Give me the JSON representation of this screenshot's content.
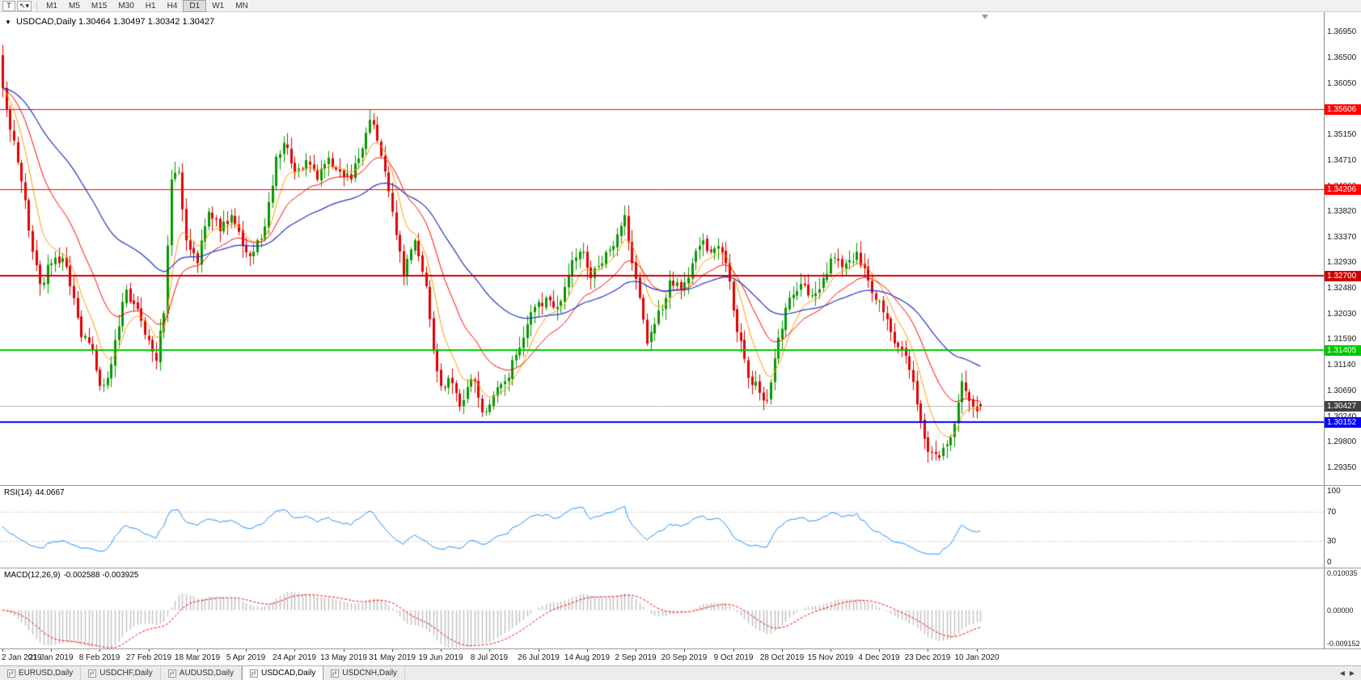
{
  "accent_colors": {
    "bull": "#089800",
    "bear": "#e00000",
    "ma_fast": "#ff9900",
    "ma_mid": "#ff0000",
    "ma_slow": "#2233cc",
    "rsi_line": "#1e90ff",
    "rsi_level": "#c8c8c8",
    "macd_hist": "#bfbfbf",
    "macd_signal": "#ff0000",
    "current_price_line": "#b8b8b8",
    "current_price_badge": "#404040"
  },
  "toolbar": {
    "text_tool": "T",
    "cursor_tool": "↖",
    "cursor_dropdown": "▾",
    "timeframes": [
      "M1",
      "M5",
      "M15",
      "M30",
      "H1",
      "H4",
      "D1",
      "W1",
      "MN"
    ],
    "active_timeframe": "D1"
  },
  "chart": {
    "symbol_title": "USDCAD,Daily",
    "ohlc_values": "1.30464 1.30497 1.30342 1.30427",
    "price_axis_labels": [
      "1.36950",
      "1.36500",
      "1.36050",
      "1.35600",
      "1.35150",
      "1.34710",
      "1.34260",
      "1.33820",
      "1.33370",
      "1.32930",
      "1.32480",
      "1.32030",
      "1.31590",
      "1.31140",
      "1.30690",
      "1.30240",
      "1.29800",
      "1.29350"
    ],
    "levels": [
      {
        "price": 1.35606,
        "label": "1.35606",
        "color": "#ff0000",
        "width": 1
      },
      {
        "price": 1.34206,
        "label": "1.34206",
        "color": "#ff0000",
        "width": 1
      },
      {
        "price": 1.327,
        "label": "1.32700",
        "color": "#cc0000",
        "width": 2
      },
      {
        "price": 1.31405,
        "label": "1.31405",
        "color": "#00c800",
        "width": 2
      },
      {
        "price": 1.30152,
        "label": "1.30152",
        "color": "#0000ff",
        "width": 2
      }
    ],
    "current_price": {
      "value": 1.30427,
      "label": "1.30427"
    }
  },
  "rsi_panel": {
    "name": "RSI(14)",
    "value": "44.0667",
    "axis_labels": [
      {
        "text": "100",
        "value": 100
      },
      {
        "text": "70",
        "value": 70
      },
      {
        "text": "30",
        "value": 30
      },
      {
        "text": "0",
        "value": 0
      }
    ],
    "upper_level": 70,
    "lower_level": 30
  },
  "macd_panel": {
    "name": "MACD(12,26,9)",
    "values": "-0.002588 -0.003925",
    "axis_top": "0.010035",
    "axis_zero": "0.00000",
    "axis_bottom": "-0.009152"
  },
  "date_axis": [
    "2 Jan 2019",
    "21 Jan 2019",
    "8 Feb 2019",
    "27 Feb 2019",
    "18 Mar 2019",
    "5 Apr 2019",
    "24 Apr 2019",
    "13 May 2019",
    "31 May 2019",
    "19 Jun 2019",
    "8 Jul 2019",
    "26 Jul 2019",
    "14 Aug 2019",
    "2 Sep 2019",
    "20 Sep 2019",
    "9 Oct 2019",
    "28 Oct 2019",
    "15 Nov 2019",
    "4 Dec 2019",
    "23 Dec 2019",
    "10 Jan 2020"
  ],
  "tab_bar": {
    "tabs": [
      {
        "label": "EURUSD,Daily",
        "active": false
      },
      {
        "label": "USDCHF,Daily",
        "active": false
      },
      {
        "label": "AUDUSD,Daily",
        "active": false
      },
      {
        "label": "USDCAD,Daily",
        "active": true
      },
      {
        "label": "USDCNH,Daily",
        "active": false
      }
    ],
    "nav_left": "◀",
    "nav_right": "▶"
  },
  "chart_data": {
    "type": "candlestick",
    "symbol": "USDCAD",
    "timeframe": "Daily",
    "bars": 262,
    "bars_per_label": 13,
    "y_range": [
      1.2935,
      1.3695
    ],
    "y_scale": {
      "top": 1.373,
      "bottom": 1.2905
    },
    "last_ohlc": {
      "open": 1.30464,
      "high": 1.30497,
      "low": 1.30342,
      "close": 1.30427
    },
    "horizontal_levels": [
      1.35606,
      1.34206,
      1.327,
      1.31405,
      1.30152
    ],
    "rsi_last": 44.0667,
    "macd_last": -0.002588,
    "macd_signal_last": -0.003925,
    "ma_periods": {
      "fast": 8,
      "mid": 20,
      "slow": 50
    },
    "close_anchors": [
      [
        0,
        1.3598
      ],
      [
        2,
        1.3525
      ],
      [
        4,
        1.3468
      ],
      [
        6,
        1.3402
      ],
      [
        8,
        1.3312
      ],
      [
        10,
        1.3256
      ],
      [
        13,
        1.3292
      ],
      [
        16,
        1.3301
      ],
      [
        18,
        1.3252
      ],
      [
        21,
        1.3163
      ],
      [
        24,
        1.3142
      ],
      [
        26,
        1.3078
      ],
      [
        28,
        1.3092
      ],
      [
        31,
        1.3182
      ],
      [
        33,
        1.3246
      ],
      [
        36,
        1.3212
      ],
      [
        39,
        1.3158
      ],
      [
        41,
        1.3122
      ],
      [
        43,
        1.3205
      ],
      [
        45,
        1.3438
      ],
      [
        47,
        1.3452
      ],
      [
        49,
        1.3332
      ],
      [
        52,
        1.3292
      ],
      [
        55,
        1.3382
      ],
      [
        58,
        1.3348
      ],
      [
        61,
        1.3376
      ],
      [
        64,
        1.3322
      ],
      [
        67,
        1.3312
      ],
      [
        70,
        1.3356
      ],
      [
        73,
        1.3478
      ],
      [
        75,
        1.3502
      ],
      [
        78,
        1.3452
      ],
      [
        81,
        1.3472
      ],
      [
        84,
        1.3438
      ],
      [
        87,
        1.3476
      ],
      [
        90,
        1.3452
      ],
      [
        93,
        1.3438
      ],
      [
        96,
        1.3492
      ],
      [
        98,
        1.3542
      ],
      [
        100,
        1.3506
      ],
      [
        102,
        1.3452
      ],
      [
        104,
        1.3382
      ],
      [
        107,
        1.3272
      ],
      [
        110,
        1.3332
      ],
      [
        113,
        1.3252
      ],
      [
        115,
        1.3142
      ],
      [
        117,
        1.3078
      ],
      [
        119,
        1.3092
      ],
      [
        122,
        1.3042
      ],
      [
        124,
        1.3076
      ],
      [
        126,
        1.3086
      ],
      [
        128,
        1.3032
      ],
      [
        131,
        1.3062
      ],
      [
        134,
        1.3086
      ],
      [
        137,
        1.3132
      ],
      [
        139,
        1.3162
      ],
      [
        142,
        1.3216
      ],
      [
        145,
        1.3232
      ],
      [
        148,
        1.3216
      ],
      [
        151,
        1.3272
      ],
      [
        153,
        1.3302
      ],
      [
        155,
        1.3312
      ],
      [
        157,
        1.3266
      ],
      [
        160,
        1.3292
      ],
      [
        163,
        1.3322
      ],
      [
        166,
        1.3376
      ],
      [
        168,
        1.3292
      ],
      [
        170,
        1.3232
      ],
      [
        172,
        1.3152
      ],
      [
        174,
        1.3186
      ],
      [
        176,
        1.3212
      ],
      [
        178,
        1.3262
      ],
      [
        181,
        1.3246
      ],
      [
        184,
        1.3292
      ],
      [
        187,
        1.3332
      ],
      [
        189,
        1.3312
      ],
      [
        191,
        1.3322
      ],
      [
        193,
        1.3292
      ],
      [
        196,
        1.3172
      ],
      [
        199,
        1.3092
      ],
      [
        202,
        1.3066
      ],
      [
        204,
        1.3052
      ],
      [
        207,
        1.3162
      ],
      [
        210,
        1.3232
      ],
      [
        213,
        1.3256
      ],
      [
        216,
        1.3236
      ],
      [
        219,
        1.3266
      ],
      [
        222,
        1.3302
      ],
      [
        225,
        1.3292
      ],
      [
        228,
        1.3312
      ],
      [
        231,
        1.3262
      ],
      [
        234,
        1.3226
      ],
      [
        237,
        1.3172
      ],
      [
        240,
        1.3142
      ],
      [
        242,
        1.3106
      ],
      [
        244,
        1.3046
      ],
      [
        246,
        1.2986
      ],
      [
        248,
        1.2962
      ],
      [
        250,
        1.2953
      ],
      [
        252,
        1.2976
      ],
      [
        254,
        1.3012
      ],
      [
        256,
        1.3086
      ],
      [
        258,
        1.3052
      ],
      [
        259,
        1.3042
      ],
      [
        261,
        1.30427
      ]
    ]
  }
}
